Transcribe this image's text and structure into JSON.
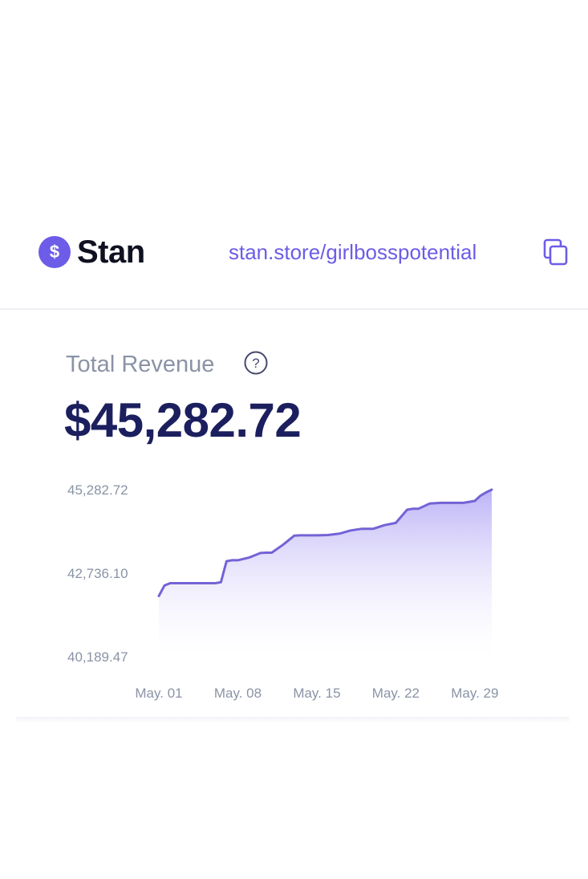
{
  "header": {
    "logo_symbol": "$",
    "logo_color": "#6c5ce7",
    "brand": "Stan",
    "store_url": "stan.store/girlbosspotential",
    "copy_icon": "copy-icon"
  },
  "revenue": {
    "label": "Total Revenue",
    "help_icon": "question-mark-icon",
    "help_symbol": "?",
    "value": "$45,282.72"
  },
  "colors": {
    "accent": "#6c5ce7",
    "line": "#7363d6",
    "fill_top": "#b9aff6",
    "title": "#1c1f5e",
    "muted": "#8a93a6"
  },
  "chart_data": {
    "type": "area",
    "y_ticks": [
      "45,282.72",
      "42,736.10",
      "40,189.47"
    ],
    "y_tick_values": [
      45282.72,
      42736.1,
      40189.47
    ],
    "x_ticks": [
      "May. 01",
      "May. 08",
      "May. 15",
      "May. 22",
      "May. 29"
    ],
    "x_tick_days": [
      1,
      8,
      15,
      22,
      29
    ],
    "ylim": [
      40189.47,
      45282.72
    ],
    "xlim_days": [
      1,
      31
    ],
    "grid": false,
    "legend": "none",
    "series": [
      {
        "x": [
          1,
          1.5,
          2,
          3,
          4,
          5,
          6,
          6.5,
          7,
          7.5,
          8,
          9,
          10,
          10.5,
          11,
          12,
          13,
          13.5,
          14,
          15,
          16,
          17,
          18,
          19,
          19.5,
          20,
          21,
          22,
          23,
          23.5,
          24,
          25,
          26,
          27,
          28,
          29,
          29.5,
          30,
          30.5
        ],
        "y": [
          42040,
          42360,
          42430,
          42430,
          42430,
          42430,
          42430,
          42460,
          43100,
          43130,
          43130,
          43210,
          43350,
          43360,
          43360,
          43600,
          43880,
          43890,
          43890,
          43890,
          43900,
          43940,
          44040,
          44090,
          44090,
          44090,
          44200,
          44270,
          44670,
          44700,
          44700,
          44860,
          44880,
          44880,
          44880,
          44940,
          45100,
          45200,
          45282.72
        ]
      }
    ]
  }
}
